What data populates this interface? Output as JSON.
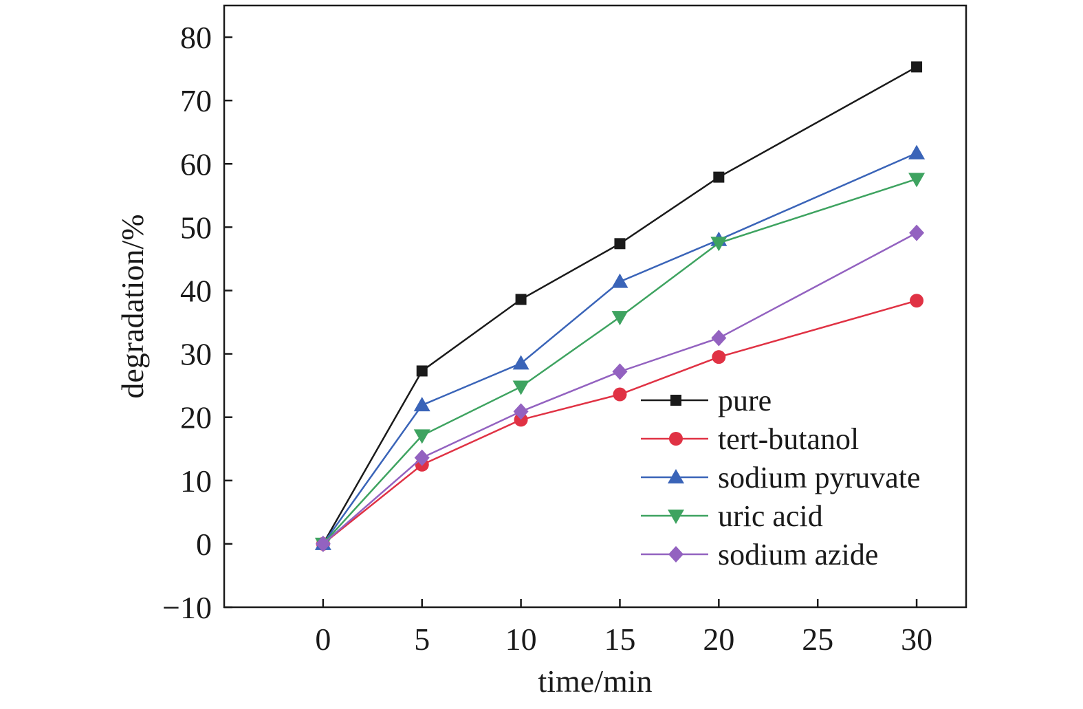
{
  "chart_data": {
    "type": "line",
    "title": "",
    "xlabel": "time/min",
    "ylabel": "degradation/%",
    "xlim": [
      -5,
      32.5
    ],
    "ylim": [
      -10,
      85
    ],
    "xticks": [
      0,
      5,
      10,
      15,
      20,
      25,
      30
    ],
    "yticks": [
      -10,
      0,
      10,
      20,
      30,
      40,
      50,
      60,
      70,
      80
    ],
    "grid": false,
    "legend_position": "lower-right",
    "x": [
      0,
      5,
      10,
      15,
      20,
      30
    ],
    "series": [
      {
        "name": "pure",
        "color": "#1a1a1a",
        "marker": "square",
        "values": [
          0,
          27.3,
          38.6,
          47.4,
          57.9,
          75.3
        ]
      },
      {
        "name": "tert-butanol",
        "color": "#e03244",
        "marker": "circle",
        "values": [
          0,
          12.5,
          19.6,
          23.6,
          29.5,
          38.4
        ]
      },
      {
        "name": "sodium pyruvate",
        "color": "#3a64b8",
        "marker": "triangle-up",
        "values": [
          0,
          21.9,
          28.5,
          41.4,
          48.0,
          61.7
        ]
      },
      {
        "name": "uric acid",
        "color": "#3ea360",
        "marker": "triangle-down",
        "values": [
          0,
          17.1,
          24.8,
          35.8,
          47.5,
          57.6
        ]
      },
      {
        "name": "sodium azide",
        "color": "#9362c0",
        "marker": "diamond",
        "values": [
          0,
          13.6,
          20.9,
          27.2,
          32.5,
          49.1
        ]
      }
    ]
  }
}
